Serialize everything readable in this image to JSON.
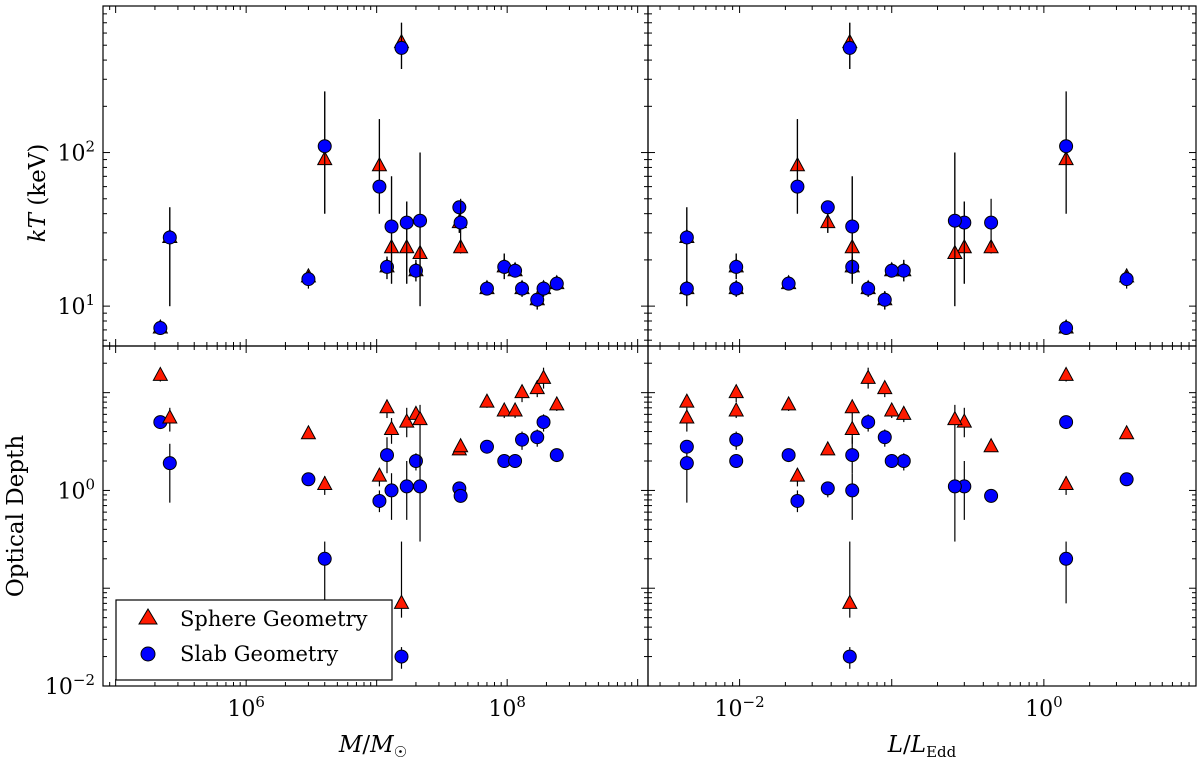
{
  "chart_data": {
    "type": "scatter",
    "layout": "2x2 grid, shared x axes per column, shared y axes per row",
    "colors": {
      "sphere": "#ff1a00",
      "slab": "#0000ff"
    },
    "legend": {
      "placement": "lower-left of bottom-left panel",
      "entries": [
        {
          "label": "Sphere Geometry",
          "marker": "triangle",
          "color": "#ff1a00"
        },
        {
          "label": "Slab Geometry",
          "marker": "circle",
          "color": "#0000ff"
        }
      ]
    },
    "rows": [
      {
        "ylabel": "kT (keV)",
        "yscale": "log",
        "ylim": [
          5.5,
          900
        ],
        "yticks": [
          {
            "value": 10,
            "base": "10",
            "exp": "1"
          },
          {
            "value": 100,
            "base": "10",
            "exp": "2"
          }
        ]
      },
      {
        "ylabel": "Optical Depth",
        "yscale": "log",
        "ylim": [
          0.01,
          30
        ],
        "yticks": [
          {
            "value": 0.01,
            "base": "10",
            "exp": "−2"
          },
          {
            "value": 1,
            "base": "10",
            "exp": "0"
          }
        ]
      }
    ],
    "columns": [
      {
        "xlabel": "M/M☉",
        "xscale": "log",
        "xlim": [
          80000,
          1200000000
        ],
        "xticks": [
          {
            "value": 1000000,
            "base": "10",
            "exp": "6"
          },
          {
            "value": 100000000,
            "base": "10",
            "exp": "8"
          }
        ]
      },
      {
        "xlabel": "L/LEdd",
        "xscale": "log",
        "xlim": [
          0.0025,
          10
        ],
        "xticks": [
          {
            "value": 0.01,
            "base": "10",
            "exp": "−2"
          },
          {
            "value": 1,
            "base": "10",
            "exp": "0"
          }
        ]
      }
    ],
    "sources": [
      {
        "mass": 220000,
        "ledd": 1.4,
        "kt_sphere": 7.2,
        "kt_sphere_err": [
          7.0,
          7.4
        ],
        "kt_slab": 7.2,
        "kt_slab_err": [
          7.0,
          7.4
        ],
        "tau_sphere": 15.0,
        "tau_sphere_err": [
          13.0,
          17.0
        ],
        "tau_slab": 5.0,
        "tau_slab_err": [
          4.5,
          5.5
        ]
      },
      {
        "mass": 260000,
        "ledd": 0.0045,
        "kt_sphere": 28.0,
        "kt_sphere_err": [
          10.0,
          44.0
        ],
        "kt_slab": 28.0,
        "kt_slab_err": [
          10.0,
          44.0
        ],
        "tau_sphere": 5.5,
        "tau_sphere_err": [
          4.0,
          7.0
        ],
        "tau_slab": 1.9,
        "tau_slab_err": [
          0.75,
          3.0
        ]
      },
      {
        "mass": 3000000,
        "ledd": 3.5,
        "kt_sphere": 15.5,
        "kt_sphere_err": [
          13.5,
          17.5
        ],
        "kt_slab": 15.0,
        "kt_slab_err": [
          13.0,
          17.0
        ],
        "tau_sphere": 3.8,
        "tau_sphere_err": [
          3.4,
          4.2
        ],
        "tau_slab": 1.3,
        "tau_slab_err": [
          1.15,
          1.45
        ]
      },
      {
        "mass": 4000000,
        "ledd": 1.4,
        "kt_sphere": 90.0,
        "kt_sphere_err": [
          40.0,
          250.0
        ],
        "kt_slab": 110.0,
        "kt_slab_err": [
          40.0,
          250.0
        ],
        "tau_sphere": 1.15,
        "tau_sphere_err": [
          0.9,
          1.4
        ],
        "tau_slab": 0.2,
        "tau_slab_err": [
          0.07,
          0.3
        ]
      },
      {
        "mass": 10500000,
        "ledd": 0.024,
        "kt_sphere": 82.0,
        "kt_sphere_err": [
          40.0,
          165.0
        ],
        "kt_slab": 60.0,
        "kt_slab_err": [
          40.0,
          165.0
        ],
        "tau_sphere": 1.4,
        "tau_sphere_err": [
          1.1,
          1.7
        ],
        "tau_slab": 0.78,
        "tau_slab_err": [
          0.6,
          1.0
        ]
      },
      {
        "mass": 12000000,
        "ledd": 0.055,
        "kt_sphere": 18.0,
        "kt_sphere_err": [
          15.0,
          21.0
        ],
        "kt_slab": 18.0,
        "kt_slab_err": [
          15.0,
          21.0
        ],
        "tau_sphere": 7.0,
        "tau_sphere_err": [
          5.5,
          8.5
        ],
        "tau_slab": 2.3,
        "tau_slab_err": [
          1.5,
          3.5
        ]
      },
      {
        "mass": 13000000,
        "ledd": 0.055,
        "kt_sphere": 24.0,
        "kt_sphere_err": [
          14.0,
          70.0
        ],
        "kt_slab": 33.0,
        "kt_slab_err": [
          14.0,
          70.0
        ],
        "tau_sphere": 4.2,
        "tau_sphere_err": [
          3.0,
          5.5
        ],
        "tau_slab": 1.0,
        "tau_slab_err": [
          0.5,
          1.5
        ]
      },
      {
        "mass": 15500000,
        "ledd": 0.053,
        "kt_sphere": 520.0,
        "kt_sphere_err": [
          350.0,
          700.0
        ],
        "kt_slab": 480.0,
        "kt_slab_err": [
          350.0,
          700.0
        ],
        "tau_sphere": 0.07,
        "tau_sphere_err": [
          0.05,
          0.3
        ],
        "tau_slab": 0.02,
        "tau_slab_err": [
          0.015,
          0.025
        ]
      },
      {
        "mass": 17000000,
        "ledd": 0.3,
        "kt_sphere": 24.0,
        "kt_sphere_err": [
          14.0,
          48.0
        ],
        "kt_slab": 35.0,
        "kt_slab_err": [
          14.0,
          48.0
        ],
        "tau_sphere": 5.0,
        "tau_sphere_err": [
          3.5,
          7.0
        ],
        "tau_slab": 1.1,
        "tau_slab_err": [
          0.5,
          2.0
        ]
      },
      {
        "mass": 20000000,
        "ledd": 0.12,
        "kt_sphere": 17.0,
        "kt_sphere_err": [
          14.5,
          20.0
        ],
        "kt_slab": 17.0,
        "kt_slab_err": [
          14.5,
          20.0
        ],
        "tau_sphere": 6.0,
        "tau_sphere_err": [
          5.0,
          7.0
        ],
        "tau_slab": 2.0,
        "tau_slab_err": [
          1.6,
          2.4
        ]
      },
      {
        "mass": 21500000,
        "ledd": 0.26,
        "kt_sphere": 22.0,
        "kt_sphere_err": [
          10.0,
          100.0
        ],
        "kt_slab": 36.0,
        "kt_slab_err": [
          10.0,
          100.0
        ],
        "tau_sphere": 5.3,
        "tau_sphere_err": [
          2.0,
          7.5
        ],
        "tau_slab": 1.1,
        "tau_slab_err": [
          0.3,
          2.0
        ]
      },
      {
        "mass": 43000000,
        "ledd": 0.038,
        "kt_sphere": 35.0,
        "kt_sphere_err": [
          30.0,
          48.0
        ],
        "kt_slab": 44.0,
        "kt_slab_err": [
          30.0,
          48.0
        ],
        "tau_sphere": 2.6,
        "tau_sphere_err": [
          2.3,
          2.9
        ],
        "tau_slab": 1.05,
        "tau_slab_err": [
          0.85,
          1.2
        ]
      },
      {
        "mass": 44000000,
        "ledd": 0.45,
        "kt_sphere": 24.0,
        "kt_sphere_err": [
          22.0,
          26.0
        ],
        "kt_slab": 35.0,
        "kt_slab_err": [
          24.0,
          50.0
        ],
        "tau_sphere": 2.8,
        "tau_sphere_err": [
          2.5,
          3.1
        ],
        "tau_slab": 0.88,
        "tau_slab_err": [
          0.75,
          1.0
        ]
      },
      {
        "mass": 70000000,
        "ledd": 0.0045,
        "kt_sphere": 13.0,
        "kt_sphere_err": [
          12.0,
          14.0
        ],
        "kt_slab": 13.0,
        "kt_slab_err": [
          12.0,
          14.0
        ],
        "tau_sphere": 8.0,
        "tau_sphere_err": [
          7.0,
          9.0
        ],
        "tau_slab": 2.8,
        "tau_slab_err": [
          2.5,
          3.1
        ]
      },
      {
        "mass": 95000000,
        "ledd": 0.0095,
        "kt_sphere": 18.0,
        "kt_sphere_err": [
          15.0,
          22.0
        ],
        "kt_slab": 18.0,
        "kt_slab_err": [
          15.0,
          22.0
        ],
        "tau_sphere": 6.5,
        "tau_sphere_err": [
          5.5,
          7.5
        ],
        "tau_slab": 2.0,
        "tau_slab_err": [
          1.7,
          2.3
        ]
      },
      {
        "mass": 115000000,
        "ledd": 0.1,
        "kt_sphere": 17.0,
        "kt_sphere_err": [
          15.5,
          18.5
        ],
        "kt_slab": 17.0,
        "kt_slab_err": [
          15.5,
          18.5
        ],
        "tau_sphere": 6.5,
        "tau_sphere_err": [
          5.5,
          7.5
        ],
        "tau_slab": 2.0,
        "tau_slab_err": [
          1.7,
          2.3
        ]
      },
      {
        "mass": 130000000,
        "ledd": 0.0095,
        "kt_sphere": 13.0,
        "kt_sphere_err": [
          11.5,
          14.5
        ],
        "kt_slab": 13.0,
        "kt_slab_err": [
          11.5,
          14.5
        ],
        "tau_sphere": 10.0,
        "tau_sphere_err": [
          8.0,
          12.0
        ],
        "tau_slab": 3.3,
        "tau_slab_err": [
          2.6,
          4.0
        ]
      },
      {
        "mass": 170000000,
        "ledd": 0.09,
        "kt_sphere": 11.0,
        "kt_sphere_err": [
          9.5,
          12.5
        ],
        "kt_slab": 11.0,
        "kt_slab_err": [
          9.5,
          12.5
        ],
        "tau_sphere": 11.0,
        "tau_sphere_err": [
          9.0,
          13.0
        ],
        "tau_slab": 3.5,
        "tau_slab_err": [
          2.8,
          4.2
        ]
      },
      {
        "mass": 190000000,
        "ledd": 0.07,
        "kt_sphere": 13.0,
        "kt_sphere_err": [
          11.5,
          14.5
        ],
        "kt_slab": 13.0,
        "kt_slab_err": [
          11.5,
          14.5
        ],
        "tau_sphere": 14.0,
        "tau_sphere_err": [
          11.0,
          18.0
        ],
        "tau_slab": 5.0,
        "tau_slab_err": [
          4.0,
          6.0
        ]
      },
      {
        "mass": 240000000,
        "ledd": 0.021,
        "kt_sphere": 14.0,
        "kt_sphere_err": [
          13.0,
          15.0
        ],
        "kt_slab": 14.0,
        "kt_slab_err": [
          13.0,
          15.0
        ],
        "tau_sphere": 7.5,
        "tau_sphere_err": [
          6.5,
          8.5
        ],
        "tau_slab": 2.3,
        "tau_slab_err": [
          2.0,
          2.6
        ]
      }
    ]
  }
}
